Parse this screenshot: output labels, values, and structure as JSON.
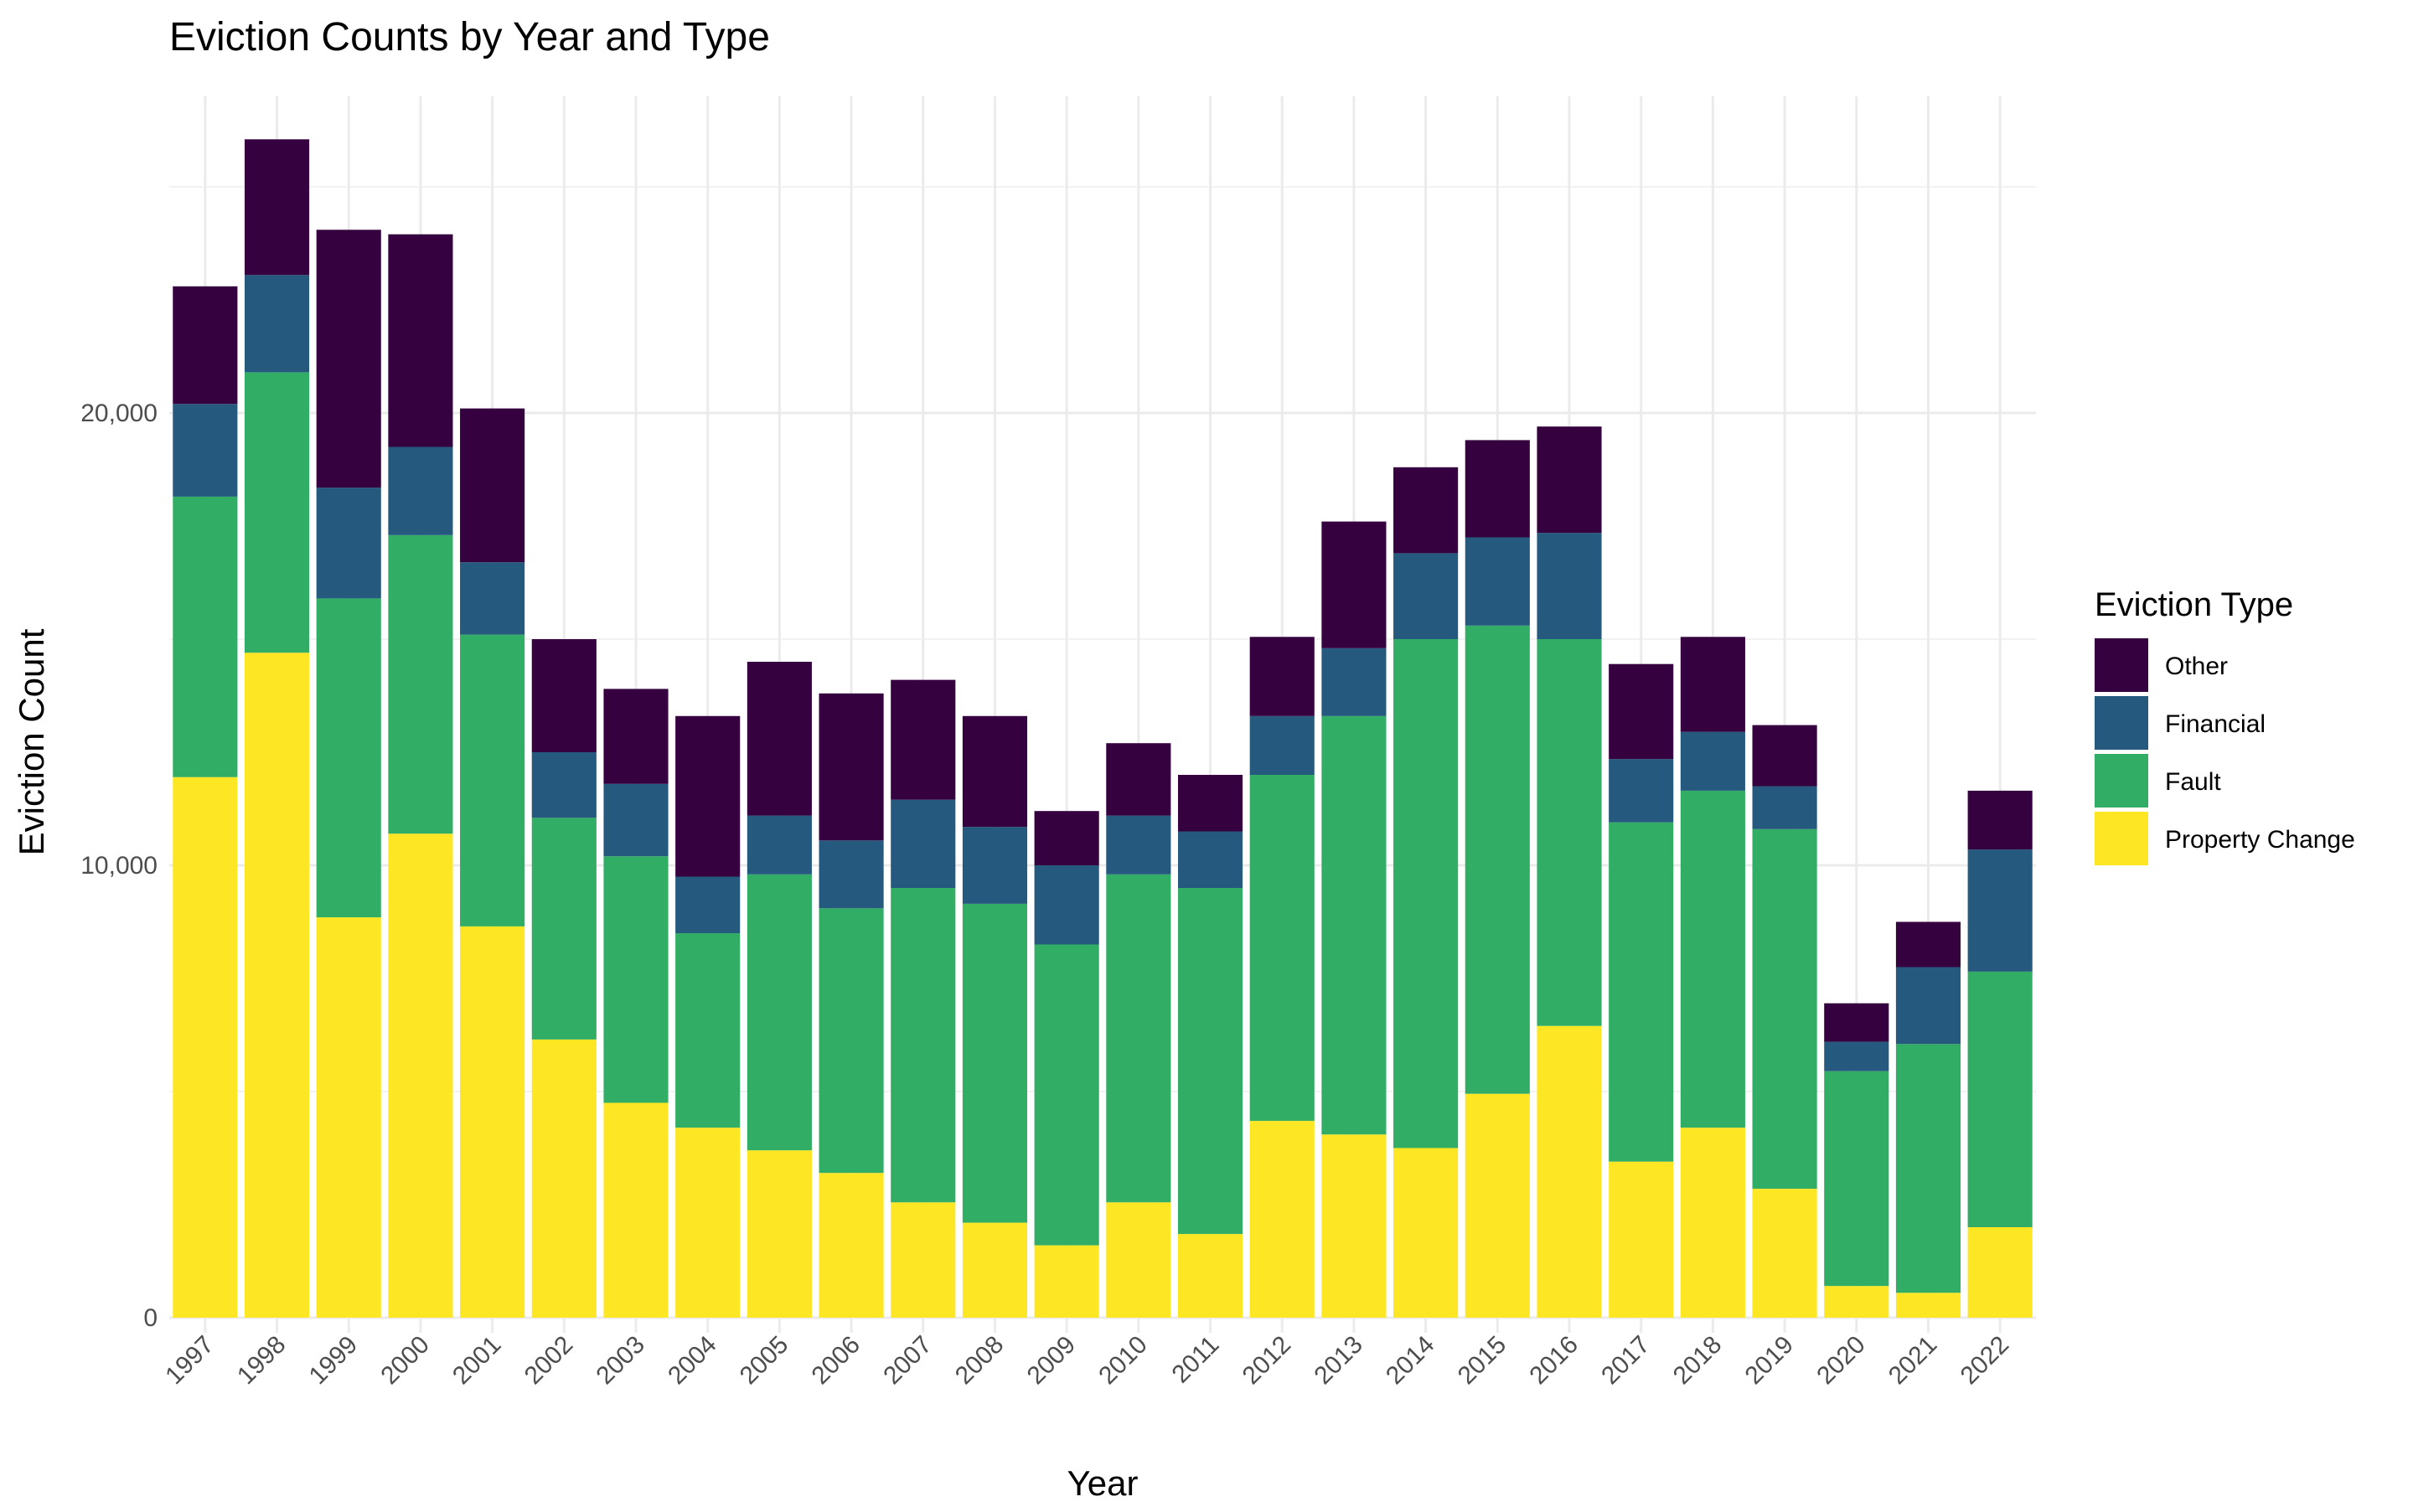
{
  "chart_data": {
    "type": "bar",
    "stacked": true,
    "title": "Eviction Counts by Year and Type",
    "xlabel": "Year",
    "ylabel": "Eviction Count",
    "ylim": [
      0,
      27000
    ],
    "yticks": [
      0,
      10000,
      20000
    ],
    "ytick_labels": [
      "0",
      "10,000",
      "20,000"
    ],
    "grid": true,
    "legend_title": "Eviction Type",
    "legend_position": "right",
    "categories": [
      "1997",
      "1998",
      "1999",
      "2000",
      "2001",
      "2002",
      "2003",
      "2004",
      "2005",
      "2006",
      "2007",
      "2008",
      "2009",
      "2010",
      "2011",
      "2012",
      "2013",
      "2014",
      "2015",
      "2016",
      "2017",
      "2018",
      "2019",
      "2020",
      "2021",
      "2022"
    ],
    "series": [
      {
        "name": "Property Change",
        "color": "#FDE725",
        "values": [
          11950,
          14700,
          8850,
          10700,
          8650,
          6150,
          4750,
          4200,
          3700,
          3200,
          2550,
          2100,
          1600,
          2550,
          1850,
          4350,
          4050,
          3750,
          4950,
          6450,
          3450,
          4200,
          2850,
          700,
          550,
          2000
        ]
      },
      {
        "name": "Fault",
        "color": "#31AD65",
        "values": [
          6200,
          6200,
          7050,
          6600,
          6450,
          4900,
          5450,
          4300,
          6100,
          5850,
          6950,
          7050,
          6650,
          7250,
          7650,
          7650,
          9250,
          11250,
          10350,
          8550,
          7500,
          7450,
          7950,
          4750,
          5500,
          5650
        ]
      },
      {
        "name": "Financial",
        "color": "#26597E",
        "values": [
          2050,
          2150,
          2450,
          1950,
          1600,
          1450,
          1600,
          1250,
          1300,
          1500,
          1950,
          1700,
          1750,
          1300,
          1250,
          1300,
          1500,
          1900,
          1950,
          2350,
          1400,
          1300,
          950,
          650,
          1700,
          2700
        ]
      },
      {
        "name": "Other",
        "color": "#35013F",
        "values": [
          2600,
          3000,
          5700,
          4700,
          3400,
          2500,
          2100,
          3550,
          3400,
          3250,
          2650,
          2450,
          1200,
          1600,
          1250,
          1750,
          2800,
          1900,
          2150,
          2350,
          2100,
          2100,
          1350,
          850,
          1000,
          1300
        ]
      }
    ]
  }
}
